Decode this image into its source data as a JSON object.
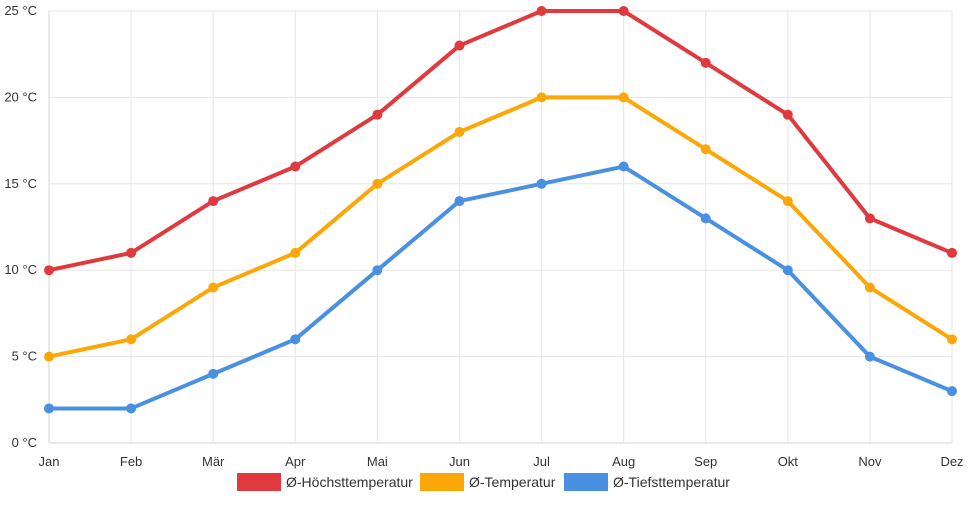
{
  "chart_data": {
    "type": "line",
    "categories": [
      "Jan",
      "Feb",
      "Mär",
      "Apr",
      "Mai",
      "Jun",
      "Jul",
      "Aug",
      "Sep",
      "Okt",
      "Nov",
      "Dez"
    ],
    "y_ticks": [
      "0 °C",
      "5 °C",
      "10 °C",
      "15 °C",
      "20 °C",
      "25 °C"
    ],
    "ylim": [
      0,
      25
    ],
    "grid": true,
    "legend_position": "bottom",
    "series": [
      {
        "name": "Ø-Höchsttemperatur",
        "color": "#e0393e",
        "values": [
          10,
          11,
          14,
          16,
          19,
          23,
          25,
          25,
          22,
          19,
          13,
          11
        ]
      },
      {
        "name": "Ø-Temperatur",
        "color": "#fba708",
        "values": [
          5,
          6,
          9,
          11,
          15,
          18,
          20,
          20,
          17,
          14,
          9,
          6
        ]
      },
      {
        "name": "Ø-Tiefsttemperatur",
        "color": "#4a90e2",
        "values": [
          2,
          2,
          4,
          6,
          10,
          14,
          15,
          16,
          13,
          10,
          5,
          3
        ]
      }
    ]
  }
}
